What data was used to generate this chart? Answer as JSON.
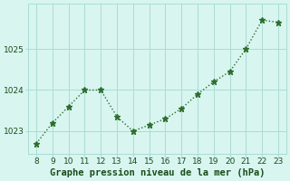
{
  "x": [
    8,
    9,
    10,
    11,
    12,
    13,
    14,
    15,
    16,
    17,
    18,
    19,
    20,
    21,
    22,
    23
  ],
  "y": [
    1022.7,
    1023.2,
    1023.6,
    1024.0,
    1024.0,
    1023.35,
    1023.0,
    1023.15,
    1023.3,
    1023.55,
    1023.9,
    1024.2,
    1024.45,
    1025.0,
    1025.7,
    1025.65
  ],
  "line_color": "#2d6e2d",
  "marker": "*",
  "marker_size": 5,
  "line_width": 1.0,
  "background_color": "#d8f5f0",
  "grid_color": "#aaddd5",
  "xlabel": "Graphe pression niveau de la mer (hPa)",
  "xlabel_color": "#1a4d1a",
  "xlabel_fontsize": 7.5,
  "tick_color": "#1a4d1a",
  "tick_fontsize": 6.5,
  "ylim": [
    1022.45,
    1026.1
  ],
  "yticks": [
    1023,
    1024,
    1025
  ],
  "xlim": [
    7.5,
    23.5
  ],
  "xticks": [
    8,
    9,
    10,
    11,
    12,
    13,
    14,
    15,
    16,
    17,
    18,
    19,
    20,
    21,
    22,
    23
  ],
  "spine_color": "#aaddd5"
}
